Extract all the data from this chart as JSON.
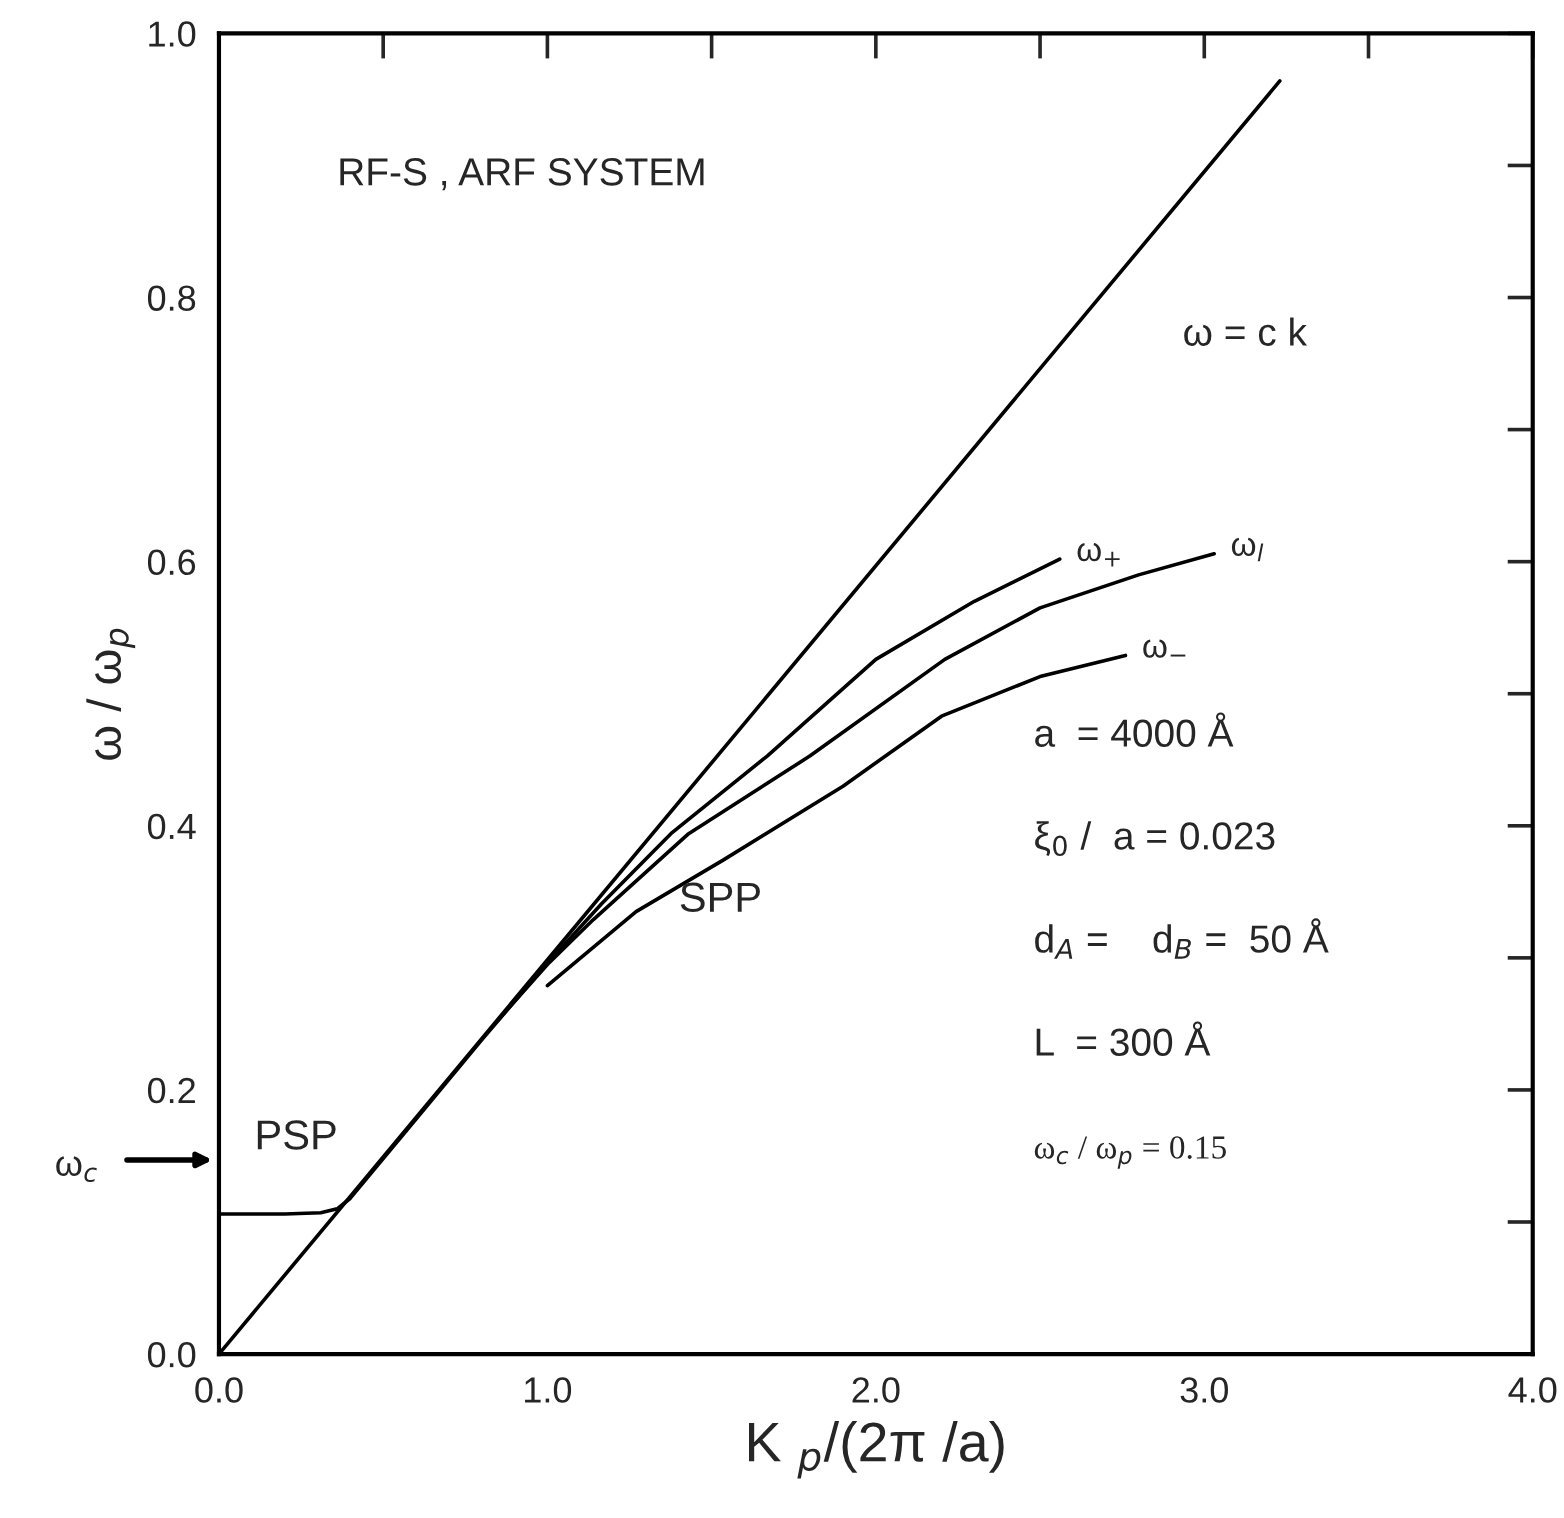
{
  "chart_data": {
    "type": "line",
    "xlabel": "K $_{p}$/(2π /a)",
    "ylabel": "ω / ω$_{p}$",
    "xlim": [
      0,
      4
    ],
    "ylim": [
      0,
      1
    ],
    "xticks": [
      {
        "value": 0,
        "label": "0.0"
      },
      {
        "value": 0.5,
        "label": null
      },
      {
        "value": 1,
        "label": "1.0"
      },
      {
        "value": 1.5,
        "label": null
      },
      {
        "value": 2,
        "label": "2.0"
      },
      {
        "value": 2.5,
        "label": null
      },
      {
        "value": 3,
        "label": "3.0"
      },
      {
        "value": 3.5,
        "label": null
      },
      {
        "value": 4,
        "label": "4.0"
      }
    ],
    "yticks": [
      {
        "value": 0,
        "label": "0.0"
      },
      {
        "value": 0.1,
        "label": null
      },
      {
        "value": 0.2,
        "label": "0.2"
      },
      {
        "value": 0.3,
        "label": null
      },
      {
        "value": 0.4,
        "label": "0.4"
      },
      {
        "value": 0.5,
        "label": null
      },
      {
        "value": 0.6,
        "label": "0.6"
      },
      {
        "value": 0.7,
        "label": null
      },
      {
        "value": 0.8,
        "label": "0.8"
      },
      {
        "value": 0.9,
        "label": null
      },
      {
        "value": 1.0,
        "label": "1.0"
      }
    ],
    "grid": false,
    "marker": "none",
    "line_style": "solid",
    "legend": false,
    "series": [
      {
        "name": "ω = c k",
        "color": "#000000",
        "x": [
          0,
          3.23
        ],
        "values": [
          0,
          0.964
        ]
      },
      {
        "name": "ω$_{+}$",
        "color": "#000000",
        "x": [
          0,
          0.2,
          0.31,
          0.36,
          0.4,
          0.6,
          0.8,
          1.0,
          1.165,
          1.376,
          1.67,
          2.0,
          2.3,
          2.56
        ],
        "values": [
          0.106,
          0.106,
          0.107,
          0.11,
          0.118,
          0.178,
          0.238,
          0.296,
          0.341,
          0.394,
          0.453,
          0.526,
          0.57,
          0.602
        ]
      },
      {
        "name": "ω$_{l}$",
        "color": "#000000",
        "x": [
          0.85,
          1.0,
          1.14,
          1.43,
          1.8,
          2.21,
          2.5,
          2.8,
          3.03
        ],
        "values": [
          0.253,
          0.295,
          0.329,
          0.394,
          0.453,
          0.526,
          0.565,
          0.59,
          0.606
        ]
      },
      {
        "name": "ω$_{−}$",
        "color": "#000000",
        "x": [
          1.0,
          1.27,
          1.535,
          1.9,
          2.2,
          2.5,
          2.76
        ],
        "values": [
          0.279,
          0.335,
          0.374,
          0.43,
          0.483,
          0.513,
          0.529
        ]
      }
    ],
    "annotations": [
      "RF-S , ARF SYSTEM",
      "a  = 4000 Å",
      "ξ$_{0}$ /  a = 0.023",
      "d$_{A}$ =    d$_{B}$ =  50 Å",
      "L  = 300 Å",
      "ω$_{c}$ / ω$_{p}$ = 0.15",
      "PSP",
      "SPP",
      "ω$_{c}$"
    ]
  }
}
